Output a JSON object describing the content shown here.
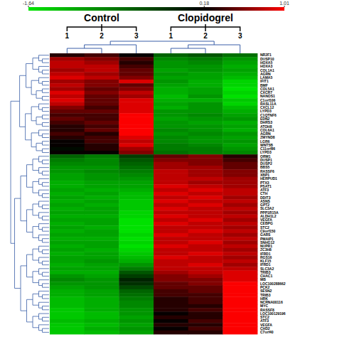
{
  "chart_data": {
    "type": "heatmap",
    "groups": [
      "Control",
      "Clopidogrel"
    ],
    "columns": [
      "1",
      "2",
      "3",
      "1",
      "2",
      "3"
    ],
    "rows": [
      "NR2F1",
      "DUSP10",
      "HOXA5",
      "HOXA3",
      "COL1A1",
      "AGRN",
      "LAMA5",
      "IFIT1",
      "BMF",
      "COL5A1",
      "CXCR7",
      "NANOS1",
      "C1orf106",
      "RASL11A",
      "CXCL12",
      "LYPD3",
      "C1QTNF6",
      "EDN2",
      "DHRS3",
      "ATOH8",
      "COL6A1",
      "AGRN",
      "ZMYND8",
      "LGR6",
      "WNT5B",
      "C11orf86",
      "LYPD3",
      "ORM1",
      "DUSP1",
      "DUSP2",
      "BBS5",
      "RASSF6",
      "XBP1",
      "HERPUD1",
      "PTX3",
      "PSAT1",
      "ATF3",
      "CTH",
      "DDIT3",
      "ASNS",
      "GPT2",
      "SLC3A2",
      "PPP1R15A",
      "ALDH1L2",
      "VEGFA",
      "CEBPG",
      "STC2",
      "C9orf150",
      "GARS",
      "PMAIP1",
      "SNHG12",
      "NUPR1",
      "ZC3H8",
      "IFRD1",
      "RGS16",
      "KLF15",
      "IFRD1",
      "SLC3A2",
      "TRIB3",
      "CHAC1",
      "MB",
      "LOC100288662",
      "PCK2",
      "SESN2",
      "TRIB3",
      "HRK",
      "NCRNA00116",
      "MYC",
      "RASSF8",
      "LOC100129196",
      "STC2",
      "ATF3",
      "VEGFA",
      "CHD2",
      "C7orf40"
    ],
    "cells": [
      [
        0.3,
        0.4,
        0.2,
        -0.6,
        -0.5,
        -0.7
      ],
      [
        0.7,
        0.6,
        0.4,
        -0.9,
        -0.8,
        -1.0
      ],
      [
        0.8,
        0.7,
        0.3,
        -1.0,
        -0.9,
        -1.1
      ],
      [
        0.8,
        0.8,
        0.4,
        -1.0,
        -1.0,
        -1.2
      ],
      [
        0.7,
        0.8,
        0.5,
        -1.1,
        -1.0,
        -1.1
      ],
      [
        0.8,
        0.7,
        0.5,
        -1.0,
        -1.1,
        -1.2
      ],
      [
        0.9,
        0.8,
        0.6,
        -1.1,
        -1.1,
        -1.3
      ],
      [
        0.7,
        0.6,
        0.9,
        -1.0,
        -1.2,
        -1.5
      ],
      [
        0.8,
        0.6,
        0.5,
        -1.1,
        -1.2,
        -1.5
      ],
      [
        0.7,
        0.5,
        0.6,
        -1.2,
        -1.1,
        -1.6
      ],
      [
        0.9,
        0.6,
        0.8,
        -1.2,
        -1.1,
        -1.5
      ],
      [
        0.8,
        0.5,
        0.7,
        -1.3,
        -1.0,
        -1.6
      ],
      [
        0.9,
        0.5,
        0.9,
        -1.2,
        -1.2,
        -1.4
      ],
      [
        0.8,
        0.5,
        0.9,
        -1.1,
        -1.0,
        -1.5
      ],
      [
        0.6,
        0.4,
        0.9,
        -1.2,
        -1.0,
        -1.3
      ],
      [
        0.5,
        0.5,
        0.9,
        -1.0,
        -1.0,
        -1.2
      ],
      [
        0.4,
        0.4,
        1.0,
        -1.0,
        -0.9,
        -1.1
      ],
      [
        0.5,
        0.4,
        1.0,
        -1.1,
        -1.0,
        -1.0
      ],
      [
        0.4,
        0.5,
        1.0,
        -1.0,
        -1.1,
        -1.2
      ],
      [
        0.3,
        0.4,
        1.0,
        -1.0,
        -1.0,
        -1.1
      ],
      [
        0.3,
        0.5,
        1.0,
        -0.9,
        -1.0,
        -1.2
      ],
      [
        0.4,
        0.3,
        1.0,
        -1.0,
        -0.9,
        -1.0
      ],
      [
        0.3,
        0.4,
        0.9,
        -0.9,
        -1.0,
        -1.1
      ],
      [
        0.2,
        0.4,
        0.8,
        -0.9,
        -1.0,
        -1.0
      ],
      [
        0.2,
        0.3,
        0.9,
        -0.8,
        -0.9,
        -1.1
      ],
      [
        0.1,
        0.3,
        0.7,
        -0.8,
        -0.8,
        -1.0
      ],
      [
        0.2,
        0.2,
        0.6,
        -0.7,
        -0.8,
        -0.9
      ],
      [
        -0.6,
        -0.8,
        -0.3,
        0.5,
        0.6,
        0.3
      ],
      [
        -0.8,
        -0.9,
        -0.5,
        0.6,
        0.6,
        0.4
      ],
      [
        -0.9,
        -0.9,
        -0.6,
        0.7,
        0.6,
        0.5
      ],
      [
        -1.0,
        -1.0,
        -0.7,
        0.7,
        0.7,
        0.5
      ],
      [
        -1.0,
        -0.9,
        -0.8,
        0.8,
        0.7,
        0.6
      ],
      [
        -1.1,
        -1.0,
        -0.9,
        0.8,
        0.7,
        0.6
      ],
      [
        -1.1,
        -1.0,
        -1.0,
        0.8,
        0.8,
        0.7
      ],
      [
        -1.2,
        -1.1,
        -1.1,
        0.8,
        0.7,
        0.7
      ],
      [
        -1.2,
        -1.1,
        -1.1,
        0.9,
        0.8,
        0.7
      ],
      [
        -1.1,
        -1.2,
        -1.2,
        0.8,
        0.9,
        0.8
      ],
      [
        -1.2,
        -1.1,
        -1.3,
        0.9,
        0.8,
        0.8
      ],
      [
        -1.1,
        -1.2,
        -1.3,
        0.8,
        0.9,
        0.7
      ],
      [
        -1.2,
        -1.1,
        -1.4,
        0.9,
        0.8,
        0.8
      ],
      [
        -1.1,
        -1.2,
        -1.4,
        0.8,
        0.9,
        0.7
      ],
      [
        -1.2,
        -1.1,
        -1.4,
        0.9,
        0.8,
        0.8
      ],
      [
        -1.1,
        -1.1,
        -1.5,
        0.8,
        0.8,
        0.7
      ],
      [
        -1.2,
        -1.2,
        -1.5,
        0.9,
        0.8,
        0.8
      ],
      [
        -1.1,
        -1.1,
        -1.6,
        0.8,
        0.9,
        0.7
      ],
      [
        -1.2,
        -1.1,
        -1.6,
        0.9,
        0.8,
        0.8
      ],
      [
        -1.1,
        -1.2,
        -1.6,
        0.8,
        0.8,
        0.7
      ],
      [
        -1.2,
        -1.1,
        -1.6,
        0.8,
        0.9,
        0.8
      ],
      [
        -1.1,
        -1.1,
        -1.5,
        0.9,
        0.8,
        0.7
      ],
      [
        -1.2,
        -1.2,
        -1.6,
        0.8,
        0.8,
        0.8
      ],
      [
        -1.1,
        -1.1,
        -1.5,
        0.8,
        0.9,
        0.7
      ],
      [
        -1.2,
        -1.1,
        -1.6,
        0.9,
        0.8,
        0.8
      ],
      [
        -1.1,
        -1.2,
        -1.5,
        0.8,
        0.8,
        0.7
      ],
      [
        -1.2,
        -1.1,
        -1.4,
        0.8,
        0.9,
        0.8
      ],
      [
        -1.1,
        -1.1,
        -1.3,
        0.9,
        0.8,
        0.7
      ],
      [
        -1.1,
        -1.0,
        -1.2,
        0.8,
        0.8,
        0.8
      ],
      [
        -1.2,
        -1.1,
        -1.0,
        0.8,
        0.9,
        0.7
      ],
      [
        -1.1,
        -1.1,
        -0.8,
        0.8,
        0.8,
        0.8
      ],
      [
        -1.2,
        -1.2,
        -0.5,
        0.7,
        0.8,
        0.9
      ],
      [
        -1.0,
        -1.1,
        -0.3,
        0.6,
        0.7,
        0.9
      ],
      [
        -0.9,
        -1.0,
        -0.1,
        0.6,
        0.6,
        0.9
      ],
      [
        -1.0,
        -1.0,
        -0.2,
        0.5,
        0.6,
        1.0
      ],
      [
        -1.1,
        -1.0,
        -0.4,
        0.5,
        0.5,
        1.0
      ],
      [
        -1.2,
        -1.1,
        -0.6,
        0.4,
        0.5,
        1.0
      ],
      [
        -1.2,
        -1.1,
        -0.7,
        0.4,
        0.4,
        1.0
      ],
      [
        -1.3,
        -1.2,
        -0.8,
        0.3,
        0.4,
        1.0
      ],
      [
        -1.3,
        -1.2,
        -0.9,
        0.3,
        0.4,
        1.0
      ],
      [
        -1.3,
        -1.2,
        -0.9,
        0.3,
        0.3,
        1.0
      ],
      [
        -1.4,
        -1.2,
        -1.0,
        0.3,
        0.4,
        1.0
      ],
      [
        -1.4,
        -1.3,
        -1.0,
        0.2,
        0.3,
        1.0
      ],
      [
        -1.4,
        -1.3,
        -1.1,
        0.3,
        0.3,
        1.0
      ],
      [
        -1.3,
        -1.2,
        -1.0,
        0.2,
        0.4,
        1.0
      ],
      [
        -1.4,
        -1.3,
        -1.1,
        0.3,
        0.3,
        1.0
      ],
      [
        -1.4,
        -1.2,
        -1.0,
        0.2,
        0.4,
        1.0
      ],
      [
        -1.4,
        -1.3,
        -1.1,
        0.3,
        0.3,
        1.0
      ]
    ],
    "colorbar": {
      "range": [
        -1.64,
        1.01
      ],
      "ticks": [
        -1.64,
        0.18,
        1.01
      ]
    }
  }
}
